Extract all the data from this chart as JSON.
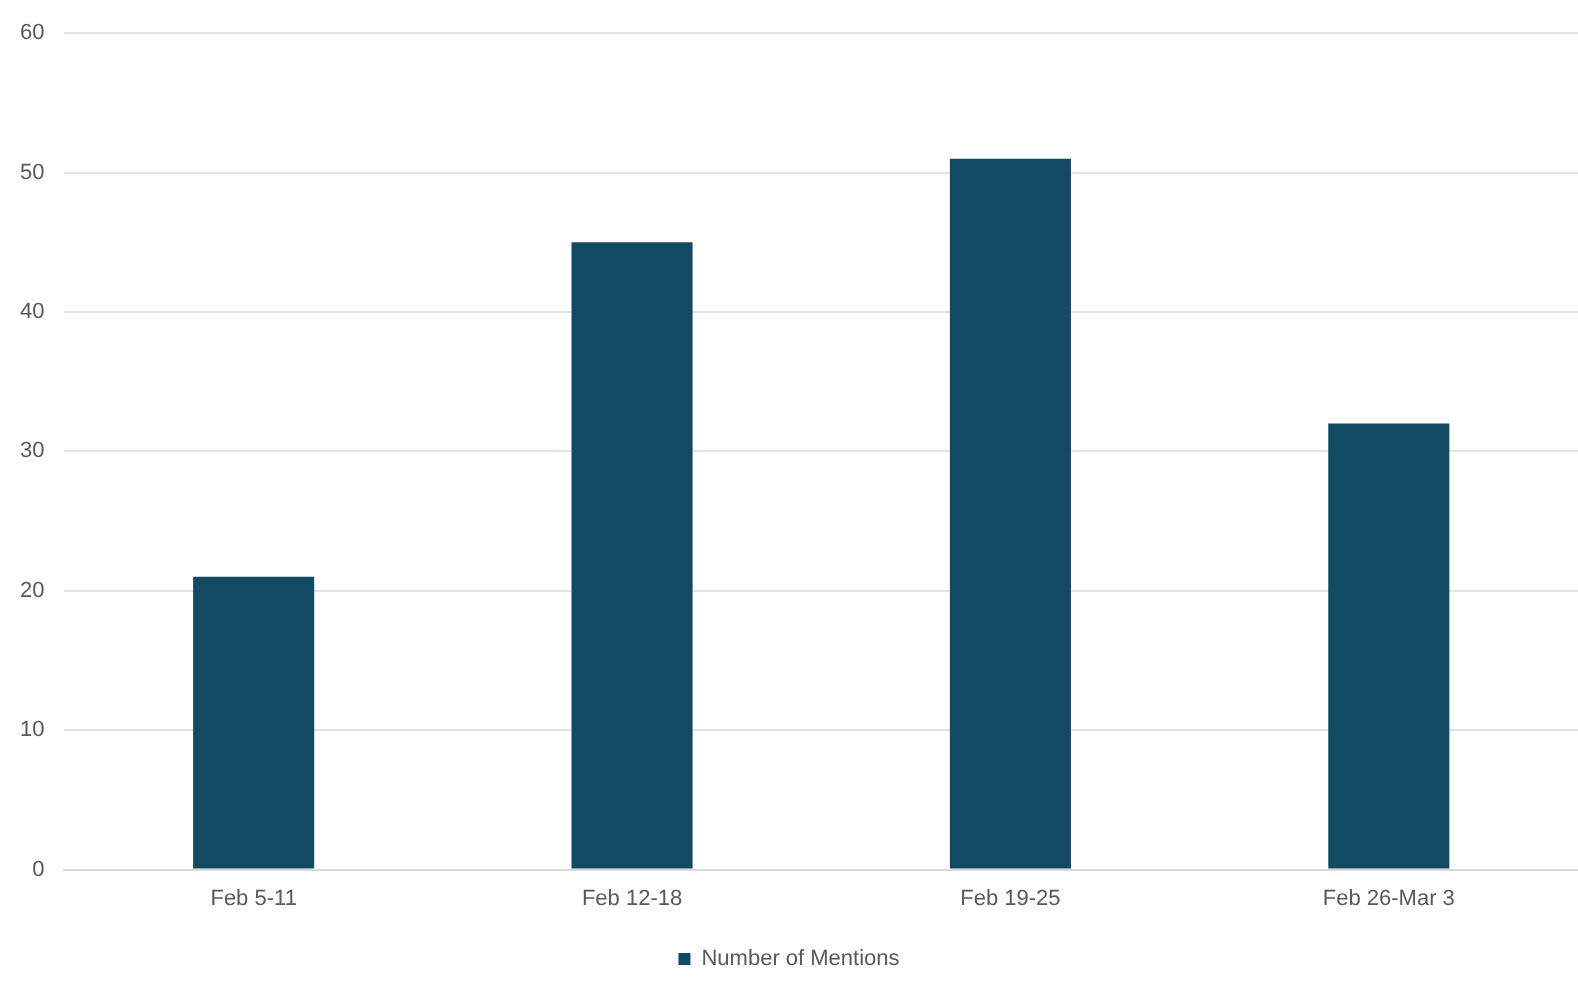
{
  "chart_data": {
    "type": "bar",
    "categories": [
      "Feb 5-11",
      "Feb 12-18",
      "Feb 19-25",
      "Feb 26-Mar 3"
    ],
    "series": [
      {
        "name": "Number of Mentions",
        "color": "#134a63",
        "values": [
          21,
          45,
          51,
          32
        ]
      }
    ],
    "ylim": [
      0,
      60
    ],
    "yticks": [
      0,
      10,
      20,
      30,
      40,
      50,
      60
    ],
    "grid": "y",
    "legend": "bottom"
  }
}
